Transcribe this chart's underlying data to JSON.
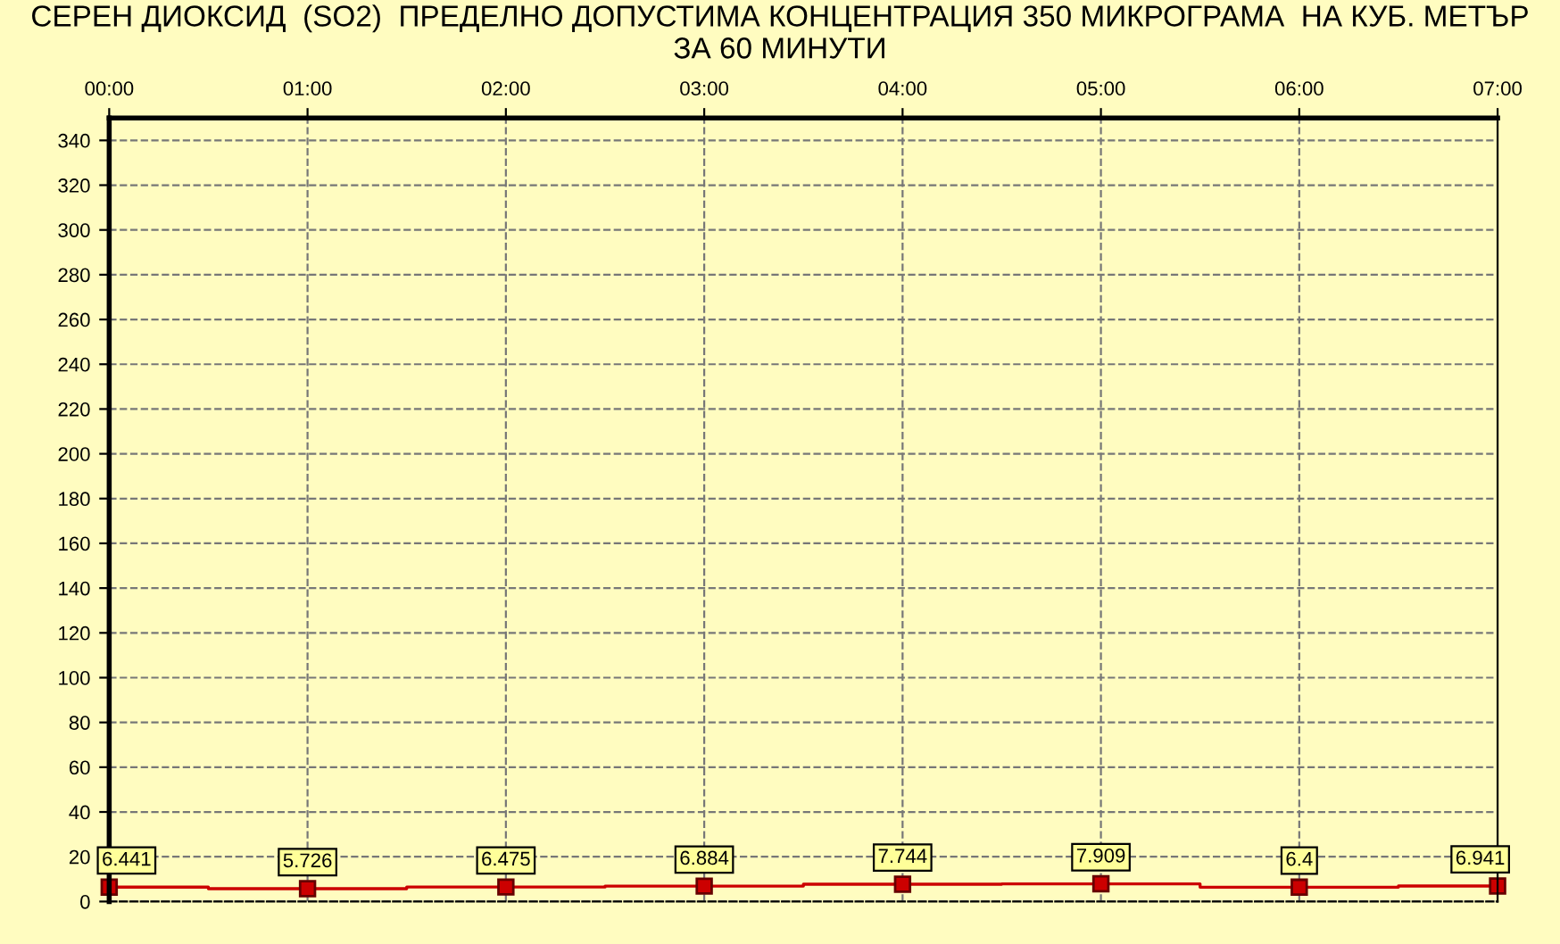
{
  "chart_data": {
    "type": "step",
    "title": "СЕРЕН ДИОКСИД  (SO2)  ПРЕДЕЛНО ДОПУСТИМА КОНЦЕНТРАЦИЯ 350 МИКРОГРАМА  НА КУБ. МЕТЪР\nЗА 60 МИНУТИ",
    "x": [
      0,
      1,
      2,
      3,
      4,
      5,
      6,
      7
    ],
    "series": [
      {
        "color": "#cc0000",
        "values": [
          6.441,
          5.726,
          6.475,
          6.884,
          7.744,
          7.909,
          6.4,
          6.941
        ]
      }
    ],
    "data_labels": true,
    "marker": "square",
    "line_style": "solid",
    "grid": true,
    "xlim": [
      0,
      7
    ],
    "xticks": [
      {
        "value": 0,
        "label": "00:00"
      },
      {
        "value": 1,
        "label": "01:00"
      },
      {
        "value": 2,
        "label": "02:00"
      },
      {
        "value": 3,
        "label": "03:00"
      },
      {
        "value": 4,
        "label": "04:00"
      },
      {
        "value": 5,
        "label": "05:00"
      },
      {
        "value": 6,
        "label": "06:00"
      },
      {
        "value": 7,
        "label": "07:00"
      }
    ],
    "ylim": [
      0,
      350
    ],
    "yticks": [
      0,
      20,
      40,
      60,
      80,
      100,
      120,
      140,
      160,
      180,
      200,
      220,
      240,
      260,
      280,
      300,
      320,
      340
    ]
  }
}
